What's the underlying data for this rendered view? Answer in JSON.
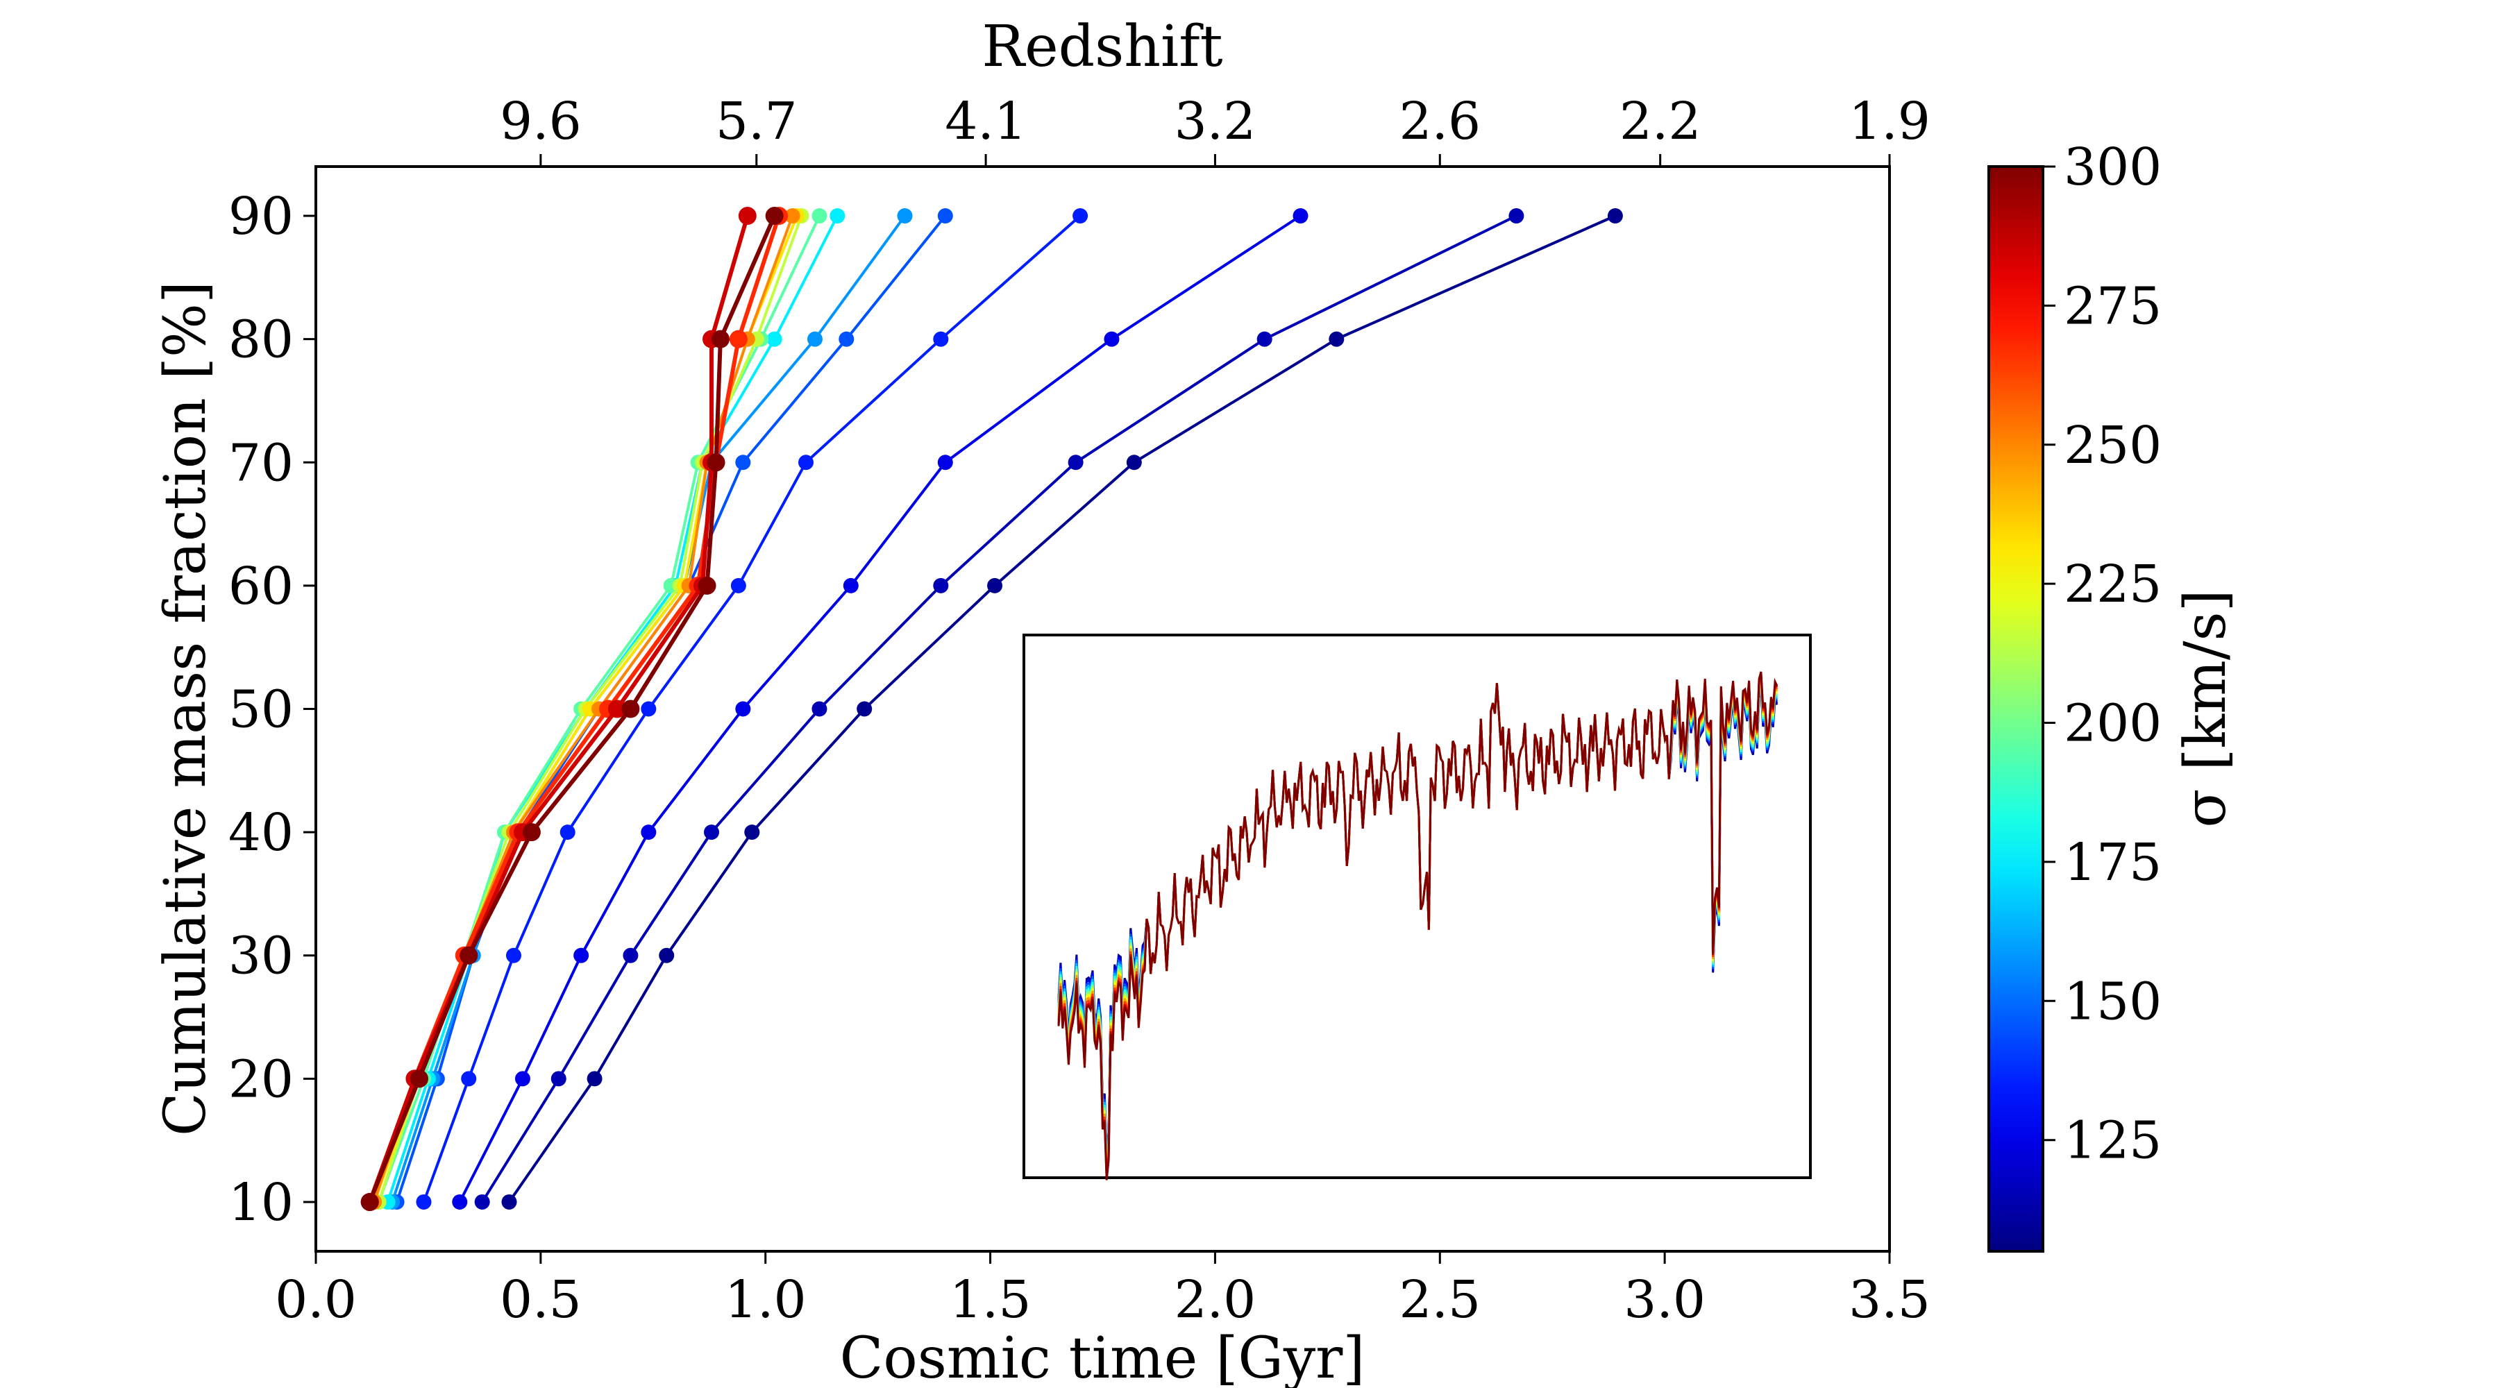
{
  "chart_data": {
    "type": "line",
    "xlabel": "Cosmic time [Gyr]",
    "ylabel": "Cumulative mass fraction [%]",
    "top_axis_label": "Redshift",
    "xlim": [
      0.0,
      3.5
    ],
    "ylim": [
      6,
      94
    ],
    "x_ticks": [
      "0.0",
      "0.5",
      "1.0",
      "1.5",
      "2.0",
      "2.5",
      "3.0",
      "3.5"
    ],
    "y_ticks": [
      "10",
      "20",
      "30",
      "40",
      "50",
      "60",
      "70",
      "80",
      "90"
    ],
    "top_ticks": [
      {
        "label": "9.6",
        "t": 0.5
      },
      {
        "label": "5.7",
        "t": 0.98
      },
      {
        "label": "4.1",
        "t": 1.49
      },
      {
        "label": "3.2",
        "t": 2.0
      },
      {
        "label": "2.6",
        "t": 2.5
      },
      {
        "label": "2.2",
        "t": 2.99
      },
      {
        "label": "1.9",
        "t": 3.5
      }
    ],
    "y_levels": [
      10,
      20,
      30,
      40,
      50,
      60,
      70,
      80,
      90
    ],
    "colorbar": {
      "label": "σ [km/s]",
      "range": [
        105,
        300
      ],
      "ticks": [
        "125",
        "150",
        "175",
        "200",
        "225",
        "250",
        "275",
        "300"
      ],
      "colormap": "jet"
    },
    "grid": false,
    "series": [
      {
        "sigma": 108,
        "x": [
          0.43,
          0.62,
          0.78,
          0.97,
          1.22,
          1.51,
          1.82,
          2.27,
          2.89
        ]
      },
      {
        "sigma": 115,
        "x": [
          0.37,
          0.54,
          0.7,
          0.88,
          1.12,
          1.39,
          1.69,
          2.11,
          2.67
        ]
      },
      {
        "sigma": 125,
        "x": [
          0.32,
          0.46,
          0.59,
          0.74,
          0.95,
          1.19,
          1.4,
          1.77,
          2.19
        ]
      },
      {
        "sigma": 135,
        "x": [
          0.24,
          0.34,
          0.44,
          0.56,
          0.74,
          0.94,
          1.09,
          1.39,
          1.7
        ]
      },
      {
        "sigma": 145,
        "x": [
          0.18,
          0.27,
          0.35,
          0.45,
          0.63,
          0.83,
          0.95,
          1.18,
          1.4
        ]
      },
      {
        "sigma": 158,
        "x": [
          0.17,
          0.26,
          0.35,
          0.44,
          0.61,
          0.82,
          0.88,
          1.11,
          1.31
        ]
      },
      {
        "sigma": 175,
        "x": [
          0.16,
          0.25,
          0.34,
          0.42,
          0.6,
          0.8,
          0.86,
          1.02,
          1.16
        ]
      },
      {
        "sigma": 195,
        "x": [
          0.14,
          0.24,
          0.33,
          0.42,
          0.59,
          0.79,
          0.85,
          0.99,
          1.12
        ]
      },
      {
        "sigma": 215,
        "x": [
          0.14,
          0.23,
          0.33,
          0.43,
          0.6,
          0.81,
          0.86,
          0.98,
          1.08
        ]
      },
      {
        "sigma": 232,
        "x": [
          0.13,
          0.23,
          0.33,
          0.44,
          0.61,
          0.82,
          0.87,
          0.96,
          1.07
        ]
      },
      {
        "sigma": 250,
        "x": [
          0.13,
          0.22,
          0.33,
          0.44,
          0.63,
          0.83,
          0.87,
          0.96,
          1.06
        ]
      },
      {
        "sigma": 268,
        "x": [
          0.12,
          0.22,
          0.33,
          0.45,
          0.65,
          0.85,
          0.89,
          0.94,
          1.03
        ]
      },
      {
        "sigma": 285,
        "x": [
          0.12,
          0.22,
          0.34,
          0.46,
          0.67,
          0.86,
          0.88,
          0.88,
          0.96
        ]
      },
      {
        "sigma": 300,
        "x": [
          0.12,
          0.23,
          0.34,
          0.48,
          0.7,
          0.87,
          0.89,
          0.9,
          1.02
        ]
      }
    ],
    "inset": {
      "description": "spectra",
      "colors_by_sigma": true
    }
  }
}
